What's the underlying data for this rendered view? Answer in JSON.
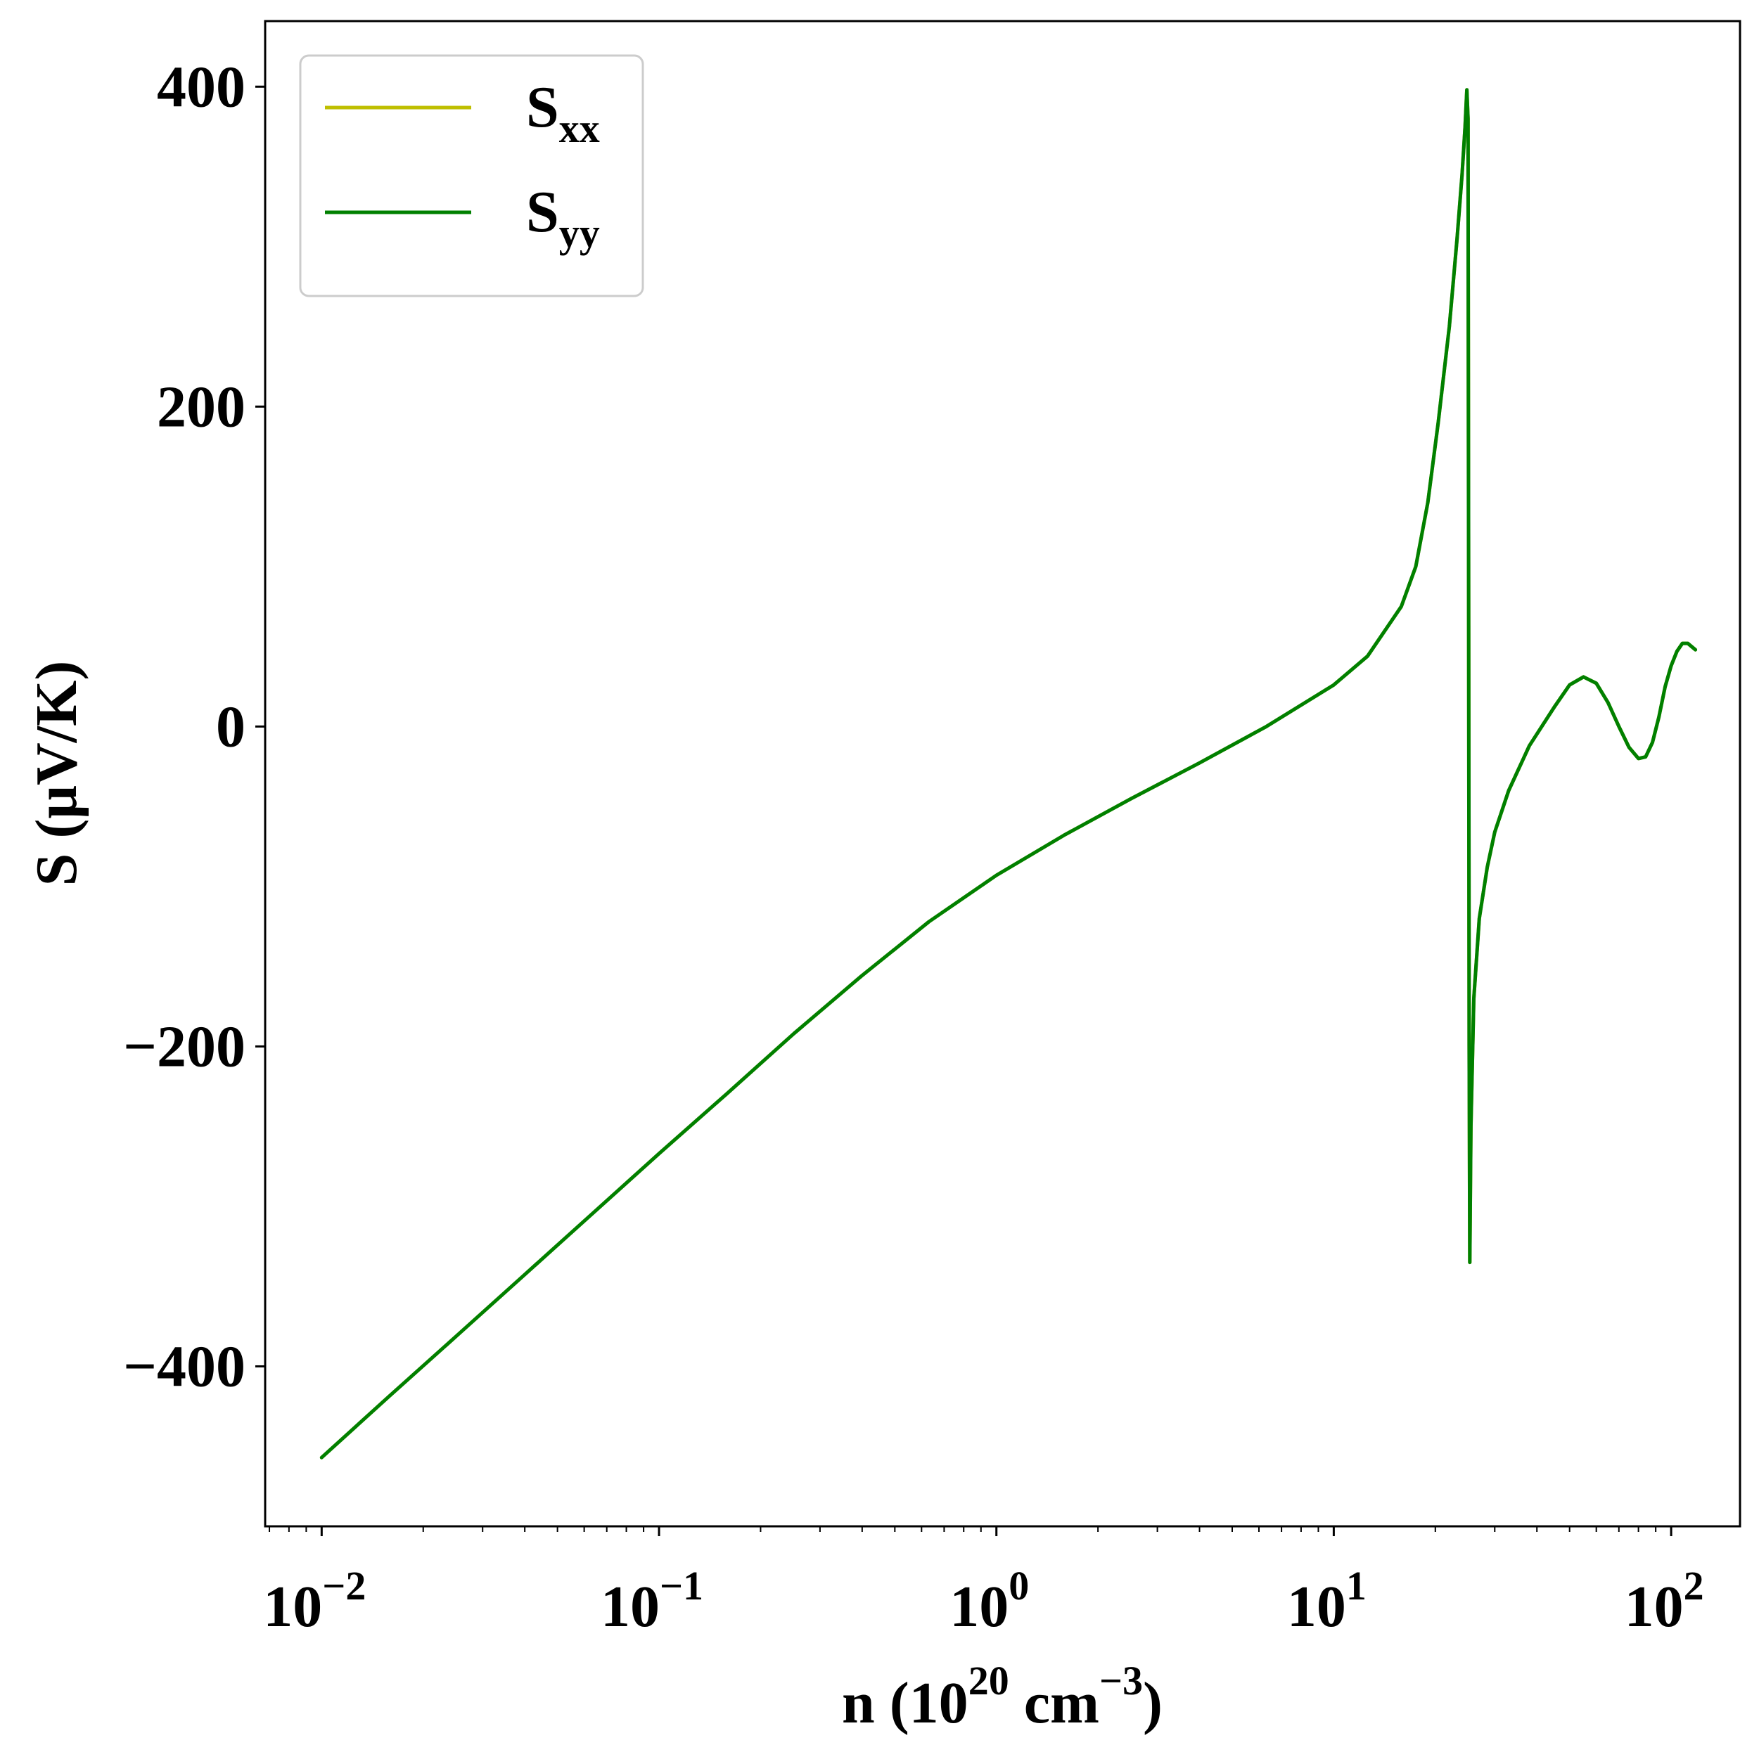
{
  "chart_data": {
    "type": "line",
    "xscale": "log",
    "xlim": [
      0.0068,
      160
    ],
    "ylim": [
      -500,
      441
    ],
    "xlabel": {
      "main": "n (10",
      "sup1": "20",
      "mid": " cm",
      "sup2": "−3",
      "end": ")"
    },
    "ylabel": "S (μV/K)",
    "x_ticks": [
      {
        "value": 0.01,
        "base": "10",
        "exp": "−2"
      },
      {
        "value": 0.1,
        "base": "10",
        "exp": "−1"
      },
      {
        "value": 1,
        "base": "10",
        "exp": "0"
      },
      {
        "value": 10,
        "base": "10",
        "exp": "1"
      },
      {
        "value": 100,
        "base": "10",
        "exp": "2"
      }
    ],
    "y_ticks": [
      {
        "value": -400,
        "label": "−400"
      },
      {
        "value": -200,
        "label": "−200"
      },
      {
        "value": 0,
        "label": "0"
      },
      {
        "value": 200,
        "label": "200"
      },
      {
        "value": 400,
        "label": "400"
      }
    ],
    "legend": {
      "position": "top-left"
    },
    "series": [
      {
        "name": "S",
        "sub": "xx",
        "color": "#bfbf00",
        "points": [
          [
            0.01,
            -457
          ],
          [
            0.0158,
            -419
          ],
          [
            0.0251,
            -381
          ],
          [
            0.0398,
            -343
          ],
          [
            0.0631,
            -305
          ],
          [
            0.1,
            -267
          ],
          [
            0.158,
            -230
          ],
          [
            0.251,
            -192
          ],
          [
            0.398,
            -156
          ],
          [
            0.631,
            -122
          ],
          [
            1,
            -93
          ],
          [
            1.585,
            -68
          ],
          [
            2.512,
            -45
          ],
          [
            3.98,
            -23
          ],
          [
            6.31,
            0
          ],
          [
            10,
            26
          ],
          [
            12.59,
            44
          ],
          [
            15.85,
            75
          ],
          [
            17.5,
            100
          ],
          [
            19,
            140
          ],
          [
            20.4,
            190
          ],
          [
            22,
            250
          ],
          [
            23.2,
            305
          ],
          [
            24,
            345
          ],
          [
            24.5,
            375
          ],
          [
            24.8,
            398
          ],
          [
            25.0,
            380
          ],
          [
            25.1,
            100
          ],
          [
            25.2,
            -200
          ],
          [
            25.3,
            -335
          ],
          [
            25.5,
            -250
          ],
          [
            26,
            -170
          ],
          [
            27,
            -120
          ],
          [
            28.5,
            -88
          ],
          [
            30,
            -66
          ],
          [
            33,
            -40
          ],
          [
            38,
            -12
          ],
          [
            45,
            12
          ],
          [
            50,
            26
          ],
          [
            55,
            31
          ],
          [
            60,
            27
          ],
          [
            65,
            15
          ],
          [
            70,
            0
          ],
          [
            75,
            -13
          ],
          [
            80,
            -20
          ],
          [
            84,
            -19
          ],
          [
            88,
            -10
          ],
          [
            92,
            6
          ],
          [
            96,
            25
          ],
          [
            100,
            38
          ],
          [
            104,
            47
          ],
          [
            108,
            52
          ],
          [
            112,
            52
          ],
          [
            118,
            48
          ]
        ]
      },
      {
        "name": "S",
        "sub": "yy",
        "color": "#008000",
        "points": [
          [
            0.01,
            -457
          ],
          [
            0.0158,
            -419
          ],
          [
            0.0251,
            -381
          ],
          [
            0.0398,
            -343
          ],
          [
            0.0631,
            -305
          ],
          [
            0.1,
            -267
          ],
          [
            0.158,
            -230
          ],
          [
            0.251,
            -192
          ],
          [
            0.398,
            -156
          ],
          [
            0.631,
            -122
          ],
          [
            1,
            -93
          ],
          [
            1.585,
            -68
          ],
          [
            2.512,
            -45
          ],
          [
            3.98,
            -23
          ],
          [
            6.31,
            0
          ],
          [
            10,
            26
          ],
          [
            12.59,
            44
          ],
          [
            15.85,
            75
          ],
          [
            17.5,
            100
          ],
          [
            19,
            140
          ],
          [
            20.4,
            190
          ],
          [
            22,
            250
          ],
          [
            23.2,
            305
          ],
          [
            24,
            345
          ],
          [
            24.5,
            375
          ],
          [
            24.8,
            398
          ],
          [
            25.0,
            380
          ],
          [
            25.1,
            100
          ],
          [
            25.2,
            -200
          ],
          [
            25.3,
            -335
          ],
          [
            25.5,
            -250
          ],
          [
            26,
            -170
          ],
          [
            27,
            -120
          ],
          [
            28.5,
            -88
          ],
          [
            30,
            -66
          ],
          [
            33,
            -40
          ],
          [
            38,
            -12
          ],
          [
            45,
            12
          ],
          [
            50,
            26
          ],
          [
            55,
            31
          ],
          [
            60,
            27
          ],
          [
            65,
            15
          ],
          [
            70,
            0
          ],
          [
            75,
            -13
          ],
          [
            80,
            -20
          ],
          [
            84,
            -19
          ],
          [
            88,
            -10
          ],
          [
            92,
            6
          ],
          [
            96,
            25
          ],
          [
            100,
            38
          ],
          [
            104,
            47
          ],
          [
            108,
            52
          ],
          [
            112,
            52
          ],
          [
            118,
            48
          ]
        ]
      }
    ]
  }
}
